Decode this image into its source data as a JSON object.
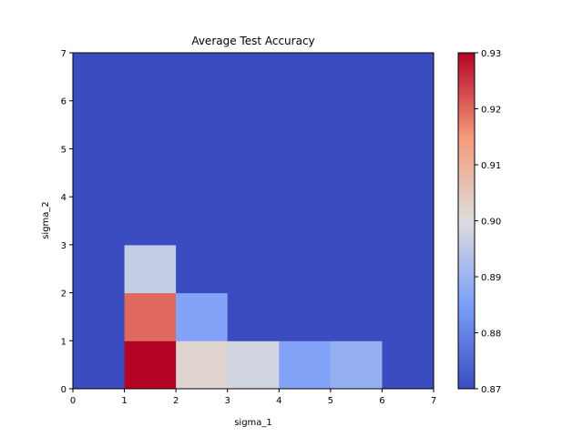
{
  "chart_data": {
    "type": "heatmap",
    "title": "Average Test Accuracy",
    "xlabel": "sigma_1",
    "ylabel": "sigma_2",
    "xlim": [
      0,
      7
    ],
    "ylim": [
      0,
      7
    ],
    "x_ticks": [
      "0",
      "1",
      "2",
      "3",
      "4",
      "5",
      "6",
      "7"
    ],
    "y_ticks": [
      "0",
      "1",
      "2",
      "3",
      "4",
      "5",
      "6",
      "7"
    ],
    "colormap": "coolwarm",
    "color_range": [
      0.87,
      0.93
    ],
    "colorbar_ticks": [
      "0.87",
      "0.88",
      "0.89",
      "0.90",
      "0.91",
      "0.92",
      "0.93"
    ],
    "grid": false,
    "values_note": "rows indexed by sigma_2 cell (0..6, bottom to top), columns by sigma_1 cell (0..6, left to right)",
    "values": [
      [
        0.87,
        0.93,
        0.902,
        0.898,
        0.886,
        0.889,
        0.87
      ],
      [
        0.87,
        0.92,
        0.886,
        0.87,
        0.87,
        0.87,
        0.87
      ],
      [
        0.87,
        0.896,
        0.87,
        0.87,
        0.87,
        0.87,
        0.87
      ],
      [
        0.87,
        0.87,
        0.87,
        0.87,
        0.87,
        0.87,
        0.87
      ],
      [
        0.87,
        0.87,
        0.87,
        0.87,
        0.87,
        0.87,
        0.87
      ],
      [
        0.87,
        0.87,
        0.87,
        0.87,
        0.87,
        0.87,
        0.87
      ],
      [
        0.87,
        0.87,
        0.87,
        0.87,
        0.87,
        0.87,
        0.87
      ]
    ]
  }
}
